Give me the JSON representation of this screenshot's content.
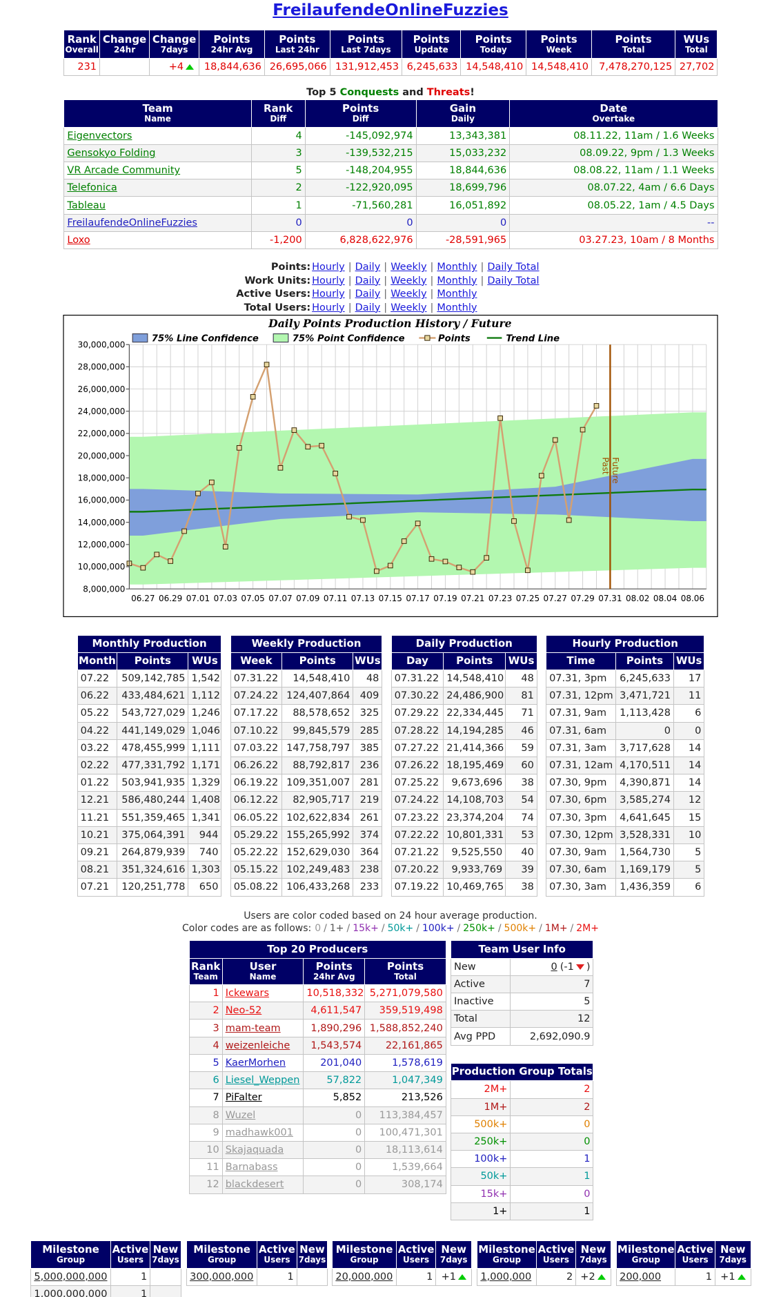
{
  "title": "FreilaufendeOnlineFuzzies",
  "summary": {
    "headers": [
      {
        "main": "Rank",
        "sub": "Overall"
      },
      {
        "main": "Change",
        "sub": "24hr"
      },
      {
        "main": "Change",
        "sub": "7days"
      },
      {
        "main": "Points",
        "sub": "24hr Avg"
      },
      {
        "main": "Points",
        "sub": "Last 24hr"
      },
      {
        "main": "Points",
        "sub": "Last 7days"
      },
      {
        "main": "Points",
        "sub": "Update"
      },
      {
        "main": "Points",
        "sub": "Today"
      },
      {
        "main": "Points",
        "sub": "Week"
      },
      {
        "main": "Points",
        "sub": "Total"
      },
      {
        "main": "WUs",
        "sub": "Total"
      }
    ],
    "rows": [
      {
        "color": "#e00000",
        "cells": [
          "231",
          null,
          {
            "text": "+4",
            "arrow": "up"
          },
          "18,844,636",
          "26,695,066",
          "131,912,453",
          "6,245,633",
          "14,548,410",
          "14,548,410",
          "7,478,270,125",
          "27,702"
        ]
      }
    ]
  },
  "conquests": {
    "heading": [
      "Top 5",
      "Conquests",
      "and",
      "Threats",
      "!"
    ],
    "heading_colors": [
      null,
      "#008000",
      null,
      "#e00000",
      null
    ],
    "headers": [
      {
        "main": "Team",
        "sub": "Name"
      },
      {
        "main": "Rank",
        "sub": "Diff"
      },
      {
        "main": "Points",
        "sub": "Diff"
      },
      {
        "main": "Gain",
        "sub": "Daily"
      },
      {
        "main": "Date",
        "sub": "Overtake"
      }
    ],
    "rows": [
      {
        "color": "#008000",
        "cells": [
          "Eigenvectors",
          "4",
          "-145,092,974",
          "13,343,381",
          "08.11.22, 11am / 1.6 Weeks"
        ]
      },
      {
        "color": "#008000",
        "cells": [
          "Gensokyo Folding",
          "3",
          "-139,532,215",
          "15,033,232",
          "08.09.22, 9pm / 1.3 Weeks"
        ]
      },
      {
        "color": "#008000",
        "cells": [
          "VR Arcade Community",
          "5",
          "-148,204,955",
          "18,844,636",
          "08.08.22, 11am / 1.1 Weeks"
        ]
      },
      {
        "color": "#008000",
        "cells": [
          "Telefonica",
          "2",
          "-122,920,095",
          "18,699,796",
          "08.07.22, 4am / 6.6 Days"
        ]
      },
      {
        "color": "#008000",
        "cells": [
          "Tableau",
          "1",
          "-71,560,281",
          "16,051,892",
          "08.05.22, 1am / 4.5 Days"
        ]
      },
      {
        "color": "#2020c0",
        "cells": [
          "FreilaufendeOnlineFuzzies",
          "0",
          "0",
          "0",
          "--"
        ]
      },
      {
        "color": "#e00000",
        "cells": [
          "Loxo",
          "-1,200",
          "6,828,622,976",
          "-28,591,965",
          "03.27.23, 10am / 8 Months"
        ]
      }
    ]
  },
  "links": {
    "separator": "|",
    "rows": [
      {
        "label": "Points:",
        "links": [
          "Hourly",
          "Daily",
          "Weekly",
          "Monthly",
          "Daily Total"
        ]
      },
      {
        "label": "Work Units:",
        "links": [
          "Hourly",
          "Daily",
          "Weekly",
          "Monthly",
          "Daily Total"
        ]
      },
      {
        "label": "Active Users:",
        "links": [
          "Hourly",
          "Daily",
          "Weekly",
          "Monthly"
        ]
      },
      {
        "label": "Total Users:",
        "links": [
          "Hourly",
          "Daily",
          "Weekly",
          "Monthly"
        ]
      }
    ]
  },
  "chart_data": {
    "type": "line",
    "title": "Daily Points Production History / Future",
    "categories": [
      null,
      "06.27",
      null,
      "06.29",
      null,
      "07.01",
      null,
      "07.03",
      null,
      "07.05",
      null,
      "07.07",
      null,
      "07.09",
      null,
      "07.11",
      null,
      "07.13",
      null,
      "07.15",
      null,
      "07.17",
      null,
      "07.19",
      null,
      "07.21",
      null,
      "07.23",
      null,
      "07.25",
      null,
      "07.27",
      null,
      "07.29",
      null,
      "07.31",
      null,
      "08.02",
      null,
      "08.04",
      null,
      "08.06",
      null
    ],
    "ylim": [
      8000000,
      30000000
    ],
    "yticks": [
      {
        "value": 8000000,
        "label": "8,000,000"
      },
      {
        "value": 10000000,
        "label": "10,000,000"
      },
      {
        "value": 12000000,
        "label": "12,000,000"
      },
      {
        "value": 14000000,
        "label": "14,000,000"
      },
      {
        "value": 16000000,
        "label": "16,000,000"
      },
      {
        "value": 18000000,
        "label": "18,000,000"
      },
      {
        "value": 20000000,
        "label": "20,000,000"
      },
      {
        "value": 22000000,
        "label": "22,000,000"
      },
      {
        "value": 24000000,
        "label": "24,000,000"
      },
      {
        "value": 26000000,
        "label": "26,000,000"
      },
      {
        "value": 28000000,
        "label": "28,000,000"
      },
      {
        "value": 30000000,
        "label": "30,000,000"
      }
    ],
    "grid": true,
    "series": [
      {
        "name": "75% Line Confidence",
        "color": "#7f9fdb",
        "x": [
          "06.27",
          "07.07",
          "07.17",
          "07.27",
          "08.06"
        ],
        "upper": [
          17000000,
          16600000,
          16500000,
          17200000,
          19700000
        ],
        "lower": [
          12800000,
          14300000,
          14900000,
          14700000,
          14100000
        ]
      },
      {
        "name": "75% Point Confidence",
        "color": "#b3f7b0",
        "x": [
          "06.27",
          "08.06"
        ],
        "upper": [
          21700000,
          23900000
        ],
        "lower": [
          8400000,
          9900000
        ]
      },
      {
        "name": "Points",
        "color": "#d4a070",
        "marker": "square",
        "values": [
          10300000,
          9900000,
          11100000,
          10500000,
          13200000,
          16600000,
          17600000,
          11800000,
          20700000,
          25300000,
          28200000,
          18900000,
          22300000,
          20800000,
          20900000,
          18400000,
          14500000,
          14200000,
          9600000,
          10100000,
          12300000,
          13900000,
          10700000,
          10469765,
          9933769,
          9525550,
          10801331,
          23374204,
          14108703,
          9673696,
          18195469,
          21414366,
          14194285,
          22334445,
          24486900,
          null,
          null,
          null,
          null,
          null,
          null,
          null,
          null
        ]
      },
      {
        "name": "Trend Line",
        "color": "#107a10",
        "x": [
          "06.27",
          "08.06"
        ],
        "values": [
          14950000,
          16950000
        ]
      }
    ],
    "divider": {
      "at": "07.31",
      "color": "#a05000",
      "labels": [
        "Past",
        "Future"
      ]
    }
  },
  "monthly": {
    "title": "Monthly Production",
    "headers": [
      "Month",
      "Points",
      "WUs"
    ],
    "rows": [
      [
        "07.22",
        "509,142,785",
        "1,542"
      ],
      [
        "06.22",
        "433,484,621",
        "1,112"
      ],
      [
        "05.22",
        "543,727,029",
        "1,246"
      ],
      [
        "04.22",
        "441,149,029",
        "1,046"
      ],
      [
        "03.22",
        "478,455,999",
        "1,111"
      ],
      [
        "02.22",
        "477,331,792",
        "1,171"
      ],
      [
        "01.22",
        "503,941,935",
        "1,329"
      ],
      [
        "12.21",
        "586,480,244",
        "1,408"
      ],
      [
        "11.21",
        "551,359,465",
        "1,341"
      ],
      [
        "10.21",
        "375,064,391",
        "944"
      ],
      [
        "09.21",
        "264,879,939",
        "740"
      ],
      [
        "08.21",
        "351,324,616",
        "1,303"
      ],
      [
        "07.21",
        "120,251,778",
        "650"
      ]
    ]
  },
  "weekly": {
    "title": "Weekly Production",
    "headers": [
      "Week",
      "Points",
      "WUs"
    ],
    "rows": [
      [
        "07.31.22",
        "14,548,410",
        "48"
      ],
      [
        "07.24.22",
        "124,407,864",
        "409"
      ],
      [
        "07.17.22",
        "88,578,652",
        "325"
      ],
      [
        "07.10.22",
        "99,845,579",
        "285"
      ],
      [
        "07.03.22",
        "147,758,797",
        "385"
      ],
      [
        "06.26.22",
        "88,792,817",
        "236"
      ],
      [
        "06.19.22",
        "109,351,007",
        "281"
      ],
      [
        "06.12.22",
        "82,905,717",
        "219"
      ],
      [
        "06.05.22",
        "102,622,834",
        "261"
      ],
      [
        "05.29.22",
        "155,265,992",
        "374"
      ],
      [
        "05.22.22",
        "152,629,030",
        "364"
      ],
      [
        "05.15.22",
        "102,249,483",
        "238"
      ],
      [
        "05.08.22",
        "106,433,268",
        "233"
      ]
    ]
  },
  "daily": {
    "title": "Daily Production",
    "headers": [
      "Day",
      "Points",
      "WUs"
    ],
    "rows": [
      [
        "07.31.22",
        "14,548,410",
        "48"
      ],
      [
        "07.30.22",
        "24,486,900",
        "81"
      ],
      [
        "07.29.22",
        "22,334,445",
        "71"
      ],
      [
        "07.28.22",
        "14,194,285",
        "46"
      ],
      [
        "07.27.22",
        "21,414,366",
        "59"
      ],
      [
        "07.26.22",
        "18,195,469",
        "60"
      ],
      [
        "07.25.22",
        "9,673,696",
        "38"
      ],
      [
        "07.24.22",
        "14,108,703",
        "54"
      ],
      [
        "07.23.22",
        "23,374,204",
        "74"
      ],
      [
        "07.22.22",
        "10,801,331",
        "53"
      ],
      [
        "07.21.22",
        "9,525,550",
        "40"
      ],
      [
        "07.20.22",
        "9,933,769",
        "39"
      ],
      [
        "07.19.22",
        "10,469,765",
        "38"
      ]
    ]
  },
  "hourly": {
    "title": "Hourly Production",
    "headers": [
      "Time",
      "Points",
      "WUs"
    ],
    "rows": [
      [
        "07.31, 3pm",
        "6,245,633",
        "17"
      ],
      [
        "07.31, 12pm",
        "3,471,721",
        "11"
      ],
      [
        "07.31, 9am",
        "1,113,428",
        "6"
      ],
      [
        "07.31, 6am",
        "0",
        "0"
      ],
      [
        "07.31, 3am",
        "3,717,628",
        "14"
      ],
      [
        "07.31, 12am",
        "4,170,511",
        "14"
      ],
      [
        "07.30, 9pm",
        "4,390,871",
        "14"
      ],
      [
        "07.30, 6pm",
        "3,585,274",
        "12"
      ],
      [
        "07.30, 3pm",
        "4,641,645",
        "15"
      ],
      [
        "07.30, 12pm",
        "3,528,331",
        "10"
      ],
      [
        "07.30, 9am",
        "1,564,730",
        "5"
      ],
      [
        "07.30, 6am",
        "1,169,179",
        "5"
      ],
      [
        "07.30, 3am",
        "1,436,359",
        "6"
      ]
    ]
  },
  "color_info": {
    "line1": "Users are color coded based on 24 hour average production.",
    "line2": "Color codes are as follows:",
    "separator": "/",
    "codes": [
      {
        "text": "0",
        "color": "#999999"
      },
      {
        "text": "1+",
        "color": "#555555"
      },
      {
        "text": "15k+",
        "color": "#9030b0"
      },
      {
        "text": "50k+",
        "color": "#009999"
      },
      {
        "text": "100k+",
        "color": "#2020c0"
      },
      {
        "text": "250k+",
        "color": "#009000"
      },
      {
        "text": "500k+",
        "color": "#e08000"
      },
      {
        "text": "1M+",
        "color": "#b01818"
      },
      {
        "text": "2M+",
        "color": "#e81010"
      }
    ]
  },
  "top_producers": {
    "title": "Top 20 Producers",
    "headers": [
      {
        "main": "Rank",
        "sub": "Team"
      },
      {
        "main": "User",
        "sub": "Name"
      },
      {
        "main": "Points",
        "sub": "24hr Avg"
      },
      {
        "main": "Points",
        "sub": "Total"
      }
    ],
    "rows": [
      {
        "color": "#e81010",
        "cells": [
          "1",
          "Ickewars",
          "10,518,332",
          "5,271,079,580"
        ]
      },
      {
        "color": "#e81010",
        "cells": [
          "2",
          "Neo-52",
          "4,611,547",
          "359,519,498"
        ]
      },
      {
        "color": "#b01818",
        "cells": [
          "3",
          "mam-team",
          "1,890,296",
          "1,588,852,240"
        ]
      },
      {
        "color": "#b01818",
        "cells": [
          "4",
          "weizenleiche",
          "1,543,574",
          "22,161,865"
        ]
      },
      {
        "color": "#2020c0",
        "cells": [
          "5",
          "KaerMorhen",
          "201,040",
          "1,578,619"
        ]
      },
      {
        "color": "#009999",
        "cells": [
          "6",
          "Liesel_Weppen",
          "57,822",
          "1,047,349"
        ]
      },
      {
        "color": "#000000",
        "cells": [
          "7",
          "PiFalter",
          "5,852",
          "213,526"
        ]
      },
      {
        "color": "#999999",
        "cells": [
          "8",
          "Wuzel",
          "0",
          "113,384,457"
        ]
      },
      {
        "color": "#999999",
        "cells": [
          "9",
          "madhawk001",
          "0",
          "100,471,301"
        ]
      },
      {
        "color": "#999999",
        "cells": [
          "10",
          "Skajaquada",
          "0",
          "18,113,614"
        ]
      },
      {
        "color": "#999999",
        "cells": [
          "11",
          "Barnabass",
          "0",
          "1,539,664"
        ]
      },
      {
        "color": "#999999",
        "cells": [
          "12",
          "blackdesert",
          "0",
          "308,174"
        ]
      }
    ]
  },
  "team_info": {
    "title": "Team User Info",
    "rows": [
      [
        "New",
        {
          "text": "0",
          "note": "(-1",
          "arrow": "down",
          "tail": ")"
        }
      ],
      [
        "Active",
        "7"
      ],
      [
        "Inactive",
        "5"
      ],
      [
        "Total",
        "12"
      ],
      [
        "Avg PPD",
        "2,692,090.9"
      ]
    ]
  },
  "group_totals": {
    "title": "Production Group Totals",
    "rows": [
      {
        "color": "#e81010",
        "cells": [
          "2M+",
          "2"
        ]
      },
      {
        "color": "#b01818",
        "cells": [
          "1M+",
          "2"
        ]
      },
      {
        "color": "#e08000",
        "cells": [
          "500k+",
          "0"
        ]
      },
      {
        "color": "#009000",
        "cells": [
          "250k+",
          "0"
        ]
      },
      {
        "color": "#2020c0",
        "cells": [
          "100k+",
          "1"
        ]
      },
      {
        "color": "#009999",
        "cells": [
          "50k+",
          "1"
        ]
      },
      {
        "color": "#9030b0",
        "cells": [
          "15k+",
          "0"
        ]
      },
      {
        "color": "#000000",
        "cells": [
          "1+",
          "1"
        ]
      }
    ]
  },
  "milestones": [
    {
      "headers": [
        {
          "main": "Milestone",
          "sub": "Group"
        },
        {
          "main": "Active",
          "sub": "Users"
        },
        {
          "main": "New",
          "sub": "7days"
        }
      ],
      "rows": [
        [
          "5,000,000,000",
          "1",
          null
        ],
        [
          "1,000,000,000",
          "1",
          null
        ]
      ]
    },
    {
      "headers": [
        {
          "main": "Milestone",
          "sub": "Group"
        },
        {
          "main": "Active",
          "sub": "Users"
        },
        {
          "main": "New",
          "sub": "7days"
        }
      ],
      "rows": [
        [
          "300,000,000",
          "1",
          null
        ]
      ]
    },
    {
      "headers": [
        {
          "main": "Milestone",
          "sub": "Group"
        },
        {
          "main": "Active",
          "sub": "Users"
        },
        {
          "main": "New",
          "sub": "7days"
        }
      ],
      "rows": [
        [
          "20,000,000",
          "1",
          {
            "text": "+1",
            "arrow": "up"
          }
        ]
      ]
    },
    {
      "headers": [
        {
          "main": "Milestone",
          "sub": "Group"
        },
        {
          "main": "Active",
          "sub": "Users"
        },
        {
          "main": "New",
          "sub": "7days"
        }
      ],
      "rows": [
        [
          "1,000,000",
          "2",
          {
            "text": "+2",
            "arrow": "up"
          }
        ]
      ]
    },
    {
      "headers": [
        {
          "main": "Milestone",
          "sub": "Group"
        },
        {
          "main": "Active",
          "sub": "Users"
        },
        {
          "main": "New",
          "sub": "7days"
        }
      ],
      "rows": [
        [
          "200,000",
          "1",
          {
            "text": "+1",
            "arrow": "up"
          }
        ]
      ]
    }
  ]
}
